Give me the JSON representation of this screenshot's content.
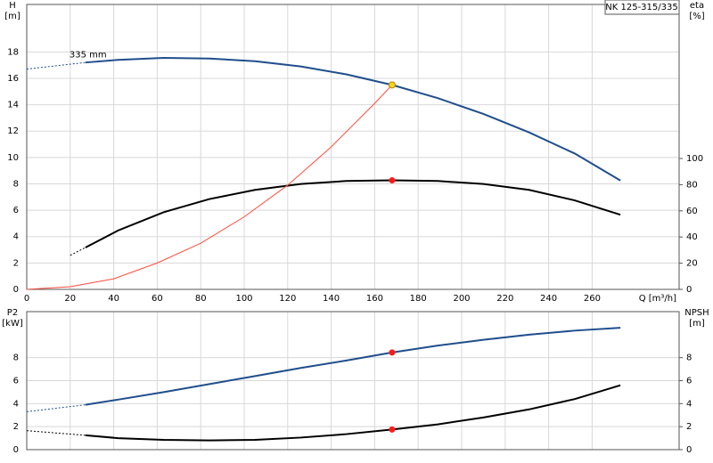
{
  "chart_data": [
    {
      "type": "line",
      "title": "NK 125-315/335",
      "y_label": [
        "H",
        "[m]"
      ],
      "y2_label": [
        "eta",
        "[%]"
      ],
      "x_label": "Q [m³/h]",
      "annotations": [
        {
          "text": "335 mm",
          "x": 18,
          "y": 17.25
        }
      ],
      "xlim": [
        0,
        300
      ],
      "xticks": [
        0,
        20,
        40,
        60,
        80,
        100,
        120,
        140,
        160,
        180,
        200,
        220,
        240,
        260
      ],
      "ylim": [
        0,
        21.6
      ],
      "yticks": [
        0,
        2,
        4,
        6,
        8,
        10,
        12,
        14,
        16,
        18
      ],
      "y2lim": [
        0,
        217.7
      ],
      "y2ticks": [
        0,
        20,
        40,
        60,
        80,
        100
      ],
      "grid": true,
      "xtick_labels": true,
      "series": [
        {
          "color": "#1f4e8c",
          "style": "dashed",
          "x": [
            0,
            27
          ],
          "values": [
            16.7,
            17.2
          ]
        },
        {
          "color": "#1f4e8c",
          "style": "solid",
          "x": [
            27,
            42,
            63,
            84,
            105,
            126,
            147,
            168,
            189,
            210,
            231,
            252,
            273
          ],
          "values": [
            17.2,
            17.4,
            17.55,
            17.5,
            17.3,
            16.9,
            16.3,
            15.5,
            14.5,
            13.3,
            11.9,
            10.3,
            8.25
          ]
        },
        {
          "color": "#000000",
          "style": "dashed",
          "axis": "y2",
          "x": [
            20,
            27
          ],
          "values": [
            26,
            32
          ]
        },
        {
          "color": "#000000",
          "style": "solid",
          "axis": "y2",
          "x": [
            27,
            42,
            63,
            84,
            105,
            126,
            147,
            168,
            189,
            210,
            231,
            252,
            273
          ],
          "values": [
            32,
            45,
            59,
            69,
            76,
            80.5,
            82.8,
            83.3,
            82.8,
            80.5,
            76,
            68,
            57
          ]
        },
        {
          "color": "#ff4c3b",
          "style": "thin",
          "x": [
            0,
            20,
            40,
            60,
            80,
            100,
            120,
            140,
            160,
            168
          ],
          "values": [
            0,
            0.2,
            0.8,
            2.0,
            3.5,
            5.5,
            7.9,
            10.8,
            14.1,
            15.5
          ]
        },
        {
          "color": "#ffd21f",
          "style": "point",
          "x": [
            168
          ],
          "values": [
            15.5
          ]
        },
        {
          "color": "#ff1a1a",
          "style": "point",
          "axis": "y2",
          "x": [
            168
          ],
          "values": [
            83.3
          ]
        }
      ]
    },
    {
      "type": "line",
      "y_label": [
        "P2",
        "[kW]"
      ],
      "y2_label": [
        "NPSH",
        "[m]"
      ],
      "xlim": [
        0,
        300
      ],
      "xticks": [
        0,
        20,
        40,
        60,
        80,
        100,
        120,
        140,
        160,
        180,
        200,
        220,
        240,
        260
      ],
      "ylim": [
        0,
        12
      ],
      "yticks": [
        0,
        2,
        4,
        6,
        8
      ],
      "y2lim": [
        0,
        12
      ],
      "y2ticks": [
        0,
        2,
        4,
        6,
        8
      ],
      "grid": true,
      "xtick_labels": false,
      "series": [
        {
          "color": "#1f4e8c",
          "style": "dashed",
          "x": [
            0,
            27
          ],
          "values": [
            3.3,
            3.9
          ]
        },
        {
          "color": "#1f4e8c",
          "style": "solid",
          "x": [
            27,
            42,
            63,
            84,
            105,
            126,
            147,
            168,
            189,
            210,
            231,
            252,
            273
          ],
          "values": [
            3.9,
            4.35,
            5.0,
            5.7,
            6.4,
            7.1,
            7.75,
            8.45,
            9.05,
            9.55,
            10.0,
            10.35,
            10.6
          ]
        },
        {
          "color": "#000000",
          "style": "dashed",
          "axis": "y2",
          "x": [
            0,
            27
          ],
          "values": [
            1.65,
            1.25
          ]
        },
        {
          "color": "#000000",
          "style": "solid",
          "axis": "y2",
          "x": [
            27,
            42,
            63,
            84,
            105,
            126,
            147,
            168,
            189,
            210,
            231,
            252,
            273
          ],
          "values": [
            1.25,
            1.0,
            0.85,
            0.8,
            0.85,
            1.05,
            1.35,
            1.75,
            2.2,
            2.8,
            3.5,
            4.4,
            5.6
          ]
        },
        {
          "color": "#ff1a1a",
          "style": "point",
          "x": [
            168
          ],
          "values": [
            8.45
          ]
        },
        {
          "color": "#ff1a1a",
          "style": "point",
          "axis": "y2",
          "x": [
            168
          ],
          "values": [
            1.75
          ]
        }
      ]
    }
  ]
}
